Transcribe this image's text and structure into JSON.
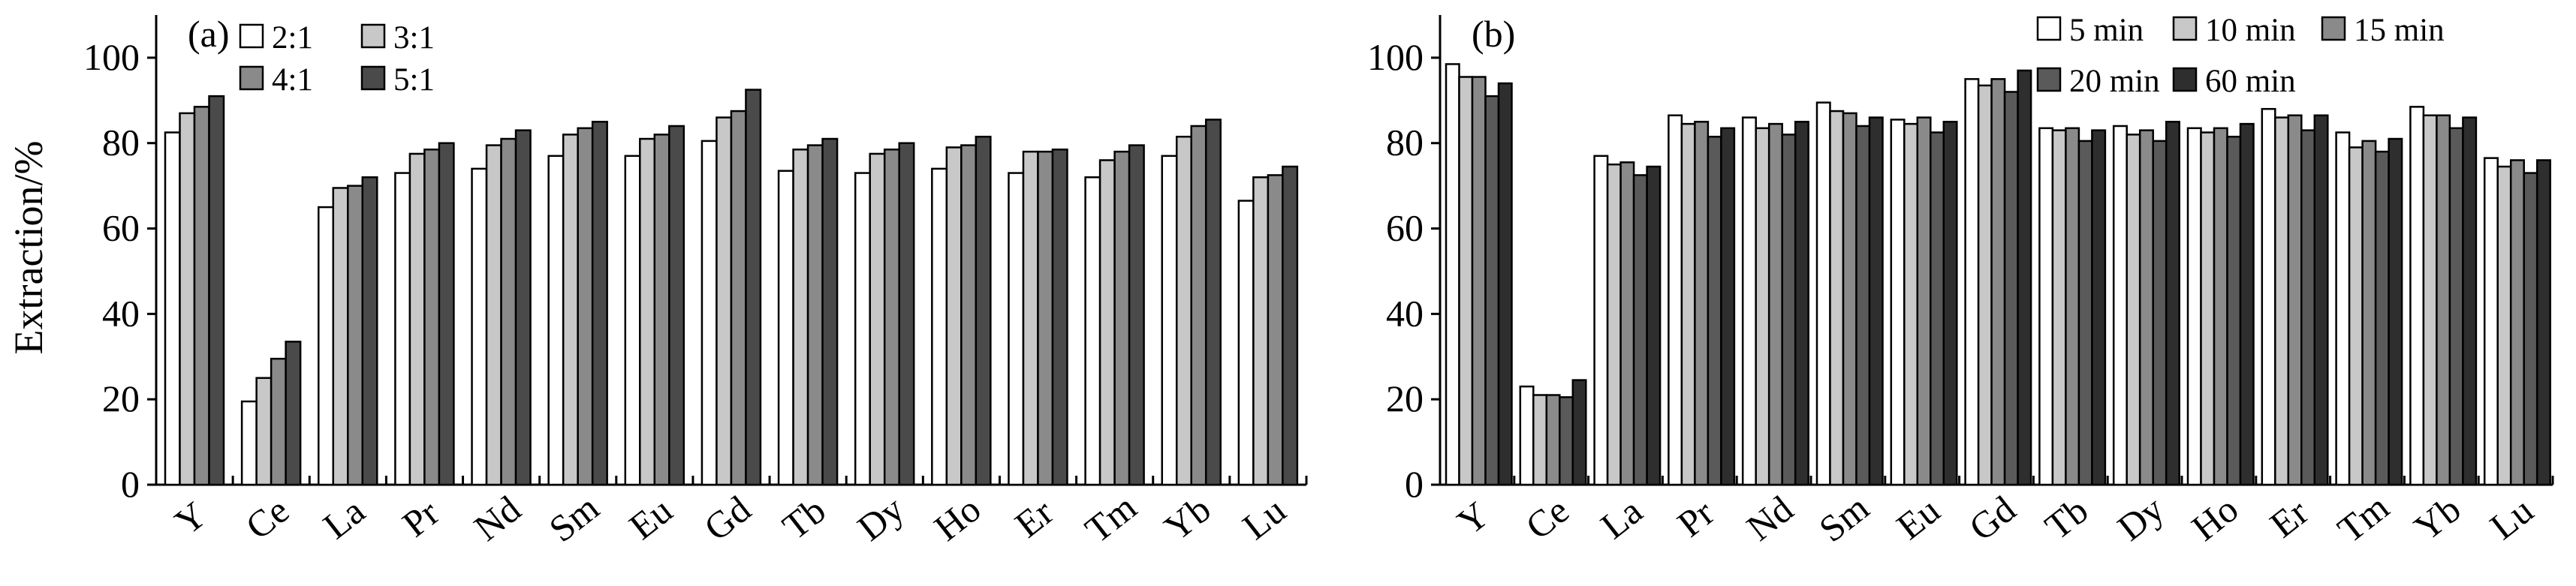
{
  "chart_data": [
    {
      "type": "bar",
      "panel_label": "(a)",
      "ylabel": "Extraction/%",
      "ylim": [
        0,
        110
      ],
      "yticks": [
        "0",
        "20",
        "40",
        "60",
        "80",
        "100"
      ],
      "categories": [
        "Y",
        "Ce",
        "La",
        "Pr",
        "Nd",
        "Sm",
        "Eu",
        "Gd",
        "Tb",
        "Dy",
        "Ho",
        "Er",
        "Tm",
        "Yb",
        "Lu"
      ],
      "legend_position": "top-left",
      "grid": false,
      "series": [
        {
          "name": "2:1",
          "color": "#ffffff",
          "values": [
            82.5,
            19.5,
            65.0,
            73.0,
            74.0,
            77.0,
            77.0,
            80.5,
            73.5,
            73.0,
            74.0,
            73.0,
            72.0,
            77.0,
            66.5
          ]
        },
        {
          "name": "3:1",
          "color": "#c8c8c8",
          "values": [
            87.0,
            25.0,
            69.5,
            77.5,
            79.5,
            82.0,
            81.0,
            86.0,
            78.5,
            77.5,
            79.0,
            78.0,
            76.0,
            81.5,
            72.0
          ]
        },
        {
          "name": "4:1",
          "color": "#8a8a8a",
          "values": [
            88.5,
            29.5,
            70.0,
            78.5,
            81.0,
            83.5,
            82.0,
            87.5,
            79.5,
            78.5,
            79.5,
            78.0,
            78.0,
            84.0,
            72.5
          ]
        },
        {
          "name": "5:1",
          "color": "#4a4a4a",
          "values": [
            91.0,
            33.5,
            72.0,
            80.0,
            83.0,
            85.0,
            84.0,
            92.5,
            81.0,
            80.0,
            81.5,
            78.5,
            79.5,
            85.5,
            74.5
          ]
        }
      ]
    },
    {
      "type": "bar",
      "panel_label": "(b)",
      "ylabel": "",
      "ylim": [
        0,
        110
      ],
      "yticks": [
        "0",
        "20",
        "40",
        "60",
        "80",
        "100"
      ],
      "categories": [
        "Y",
        "Ce",
        "La",
        "Pr",
        "Nd",
        "Sm",
        "Eu",
        "Gd",
        "Tb",
        "Dy",
        "Ho",
        "Er",
        "Tm",
        "Yb",
        "Lu"
      ],
      "legend_position": "top-right",
      "grid": false,
      "series": [
        {
          "name": "5 min",
          "color": "#ffffff",
          "values": [
            98.5,
            23.0,
            77.0,
            86.5,
            86.0,
            89.5,
            85.5,
            95.0,
            83.5,
            84.0,
            83.5,
            88.0,
            82.5,
            88.5,
            76.5
          ]
        },
        {
          "name": "10 min",
          "color": "#c8c8c8",
          "values": [
            95.5,
            21.0,
            75.0,
            84.5,
            83.5,
            87.5,
            84.5,
            93.5,
            83.0,
            82.0,
            82.5,
            86.0,
            79.0,
            86.5,
            74.5
          ]
        },
        {
          "name": "15 min",
          "color": "#8a8a8a",
          "values": [
            95.5,
            21.0,
            75.5,
            85.0,
            84.5,
            87.0,
            86.0,
            95.0,
            83.5,
            83.0,
            83.5,
            86.5,
            80.5,
            86.5,
            76.0
          ]
        },
        {
          "name": "20 min",
          "color": "#5a5a5a",
          "values": [
            91.0,
            20.5,
            72.5,
            81.5,
            82.0,
            84.0,
            82.5,
            92.0,
            80.5,
            80.5,
            81.5,
            83.0,
            78.0,
            83.5,
            73.0
          ]
        },
        {
          "name": "60 min",
          "color": "#2e2e2e",
          "values": [
            94.0,
            24.5,
            74.5,
            83.5,
            85.0,
            86.0,
            85.0,
            97.0,
            83.0,
            85.0,
            84.5,
            86.5,
            81.0,
            86.0,
            76.0
          ]
        }
      ]
    }
  ]
}
